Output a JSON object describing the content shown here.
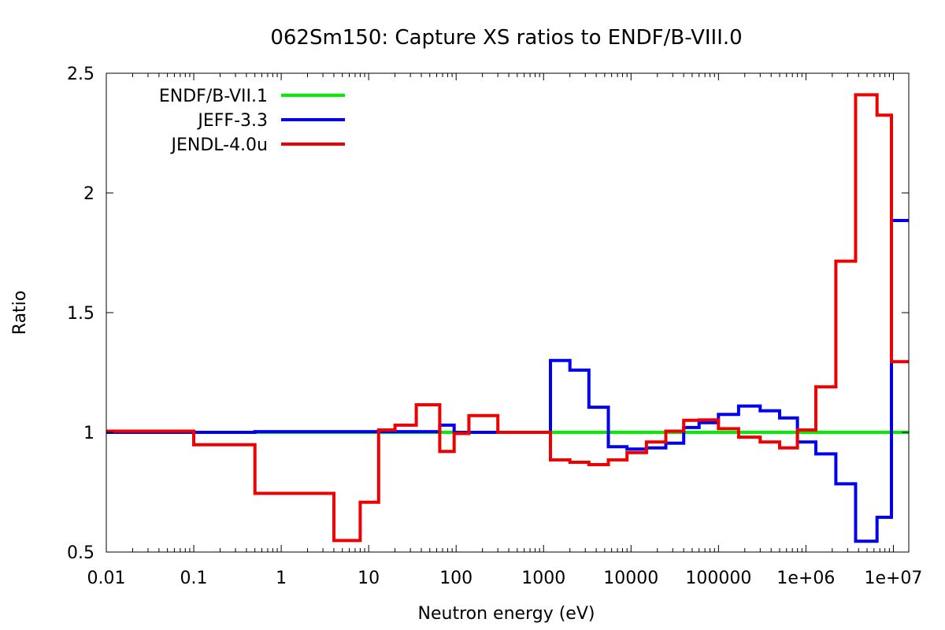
{
  "chart_data": {
    "type": "line",
    "title": "062Sm150: Capture XS ratios to ENDF/B-VIII.0",
    "xlabel": "Neutron energy (eV)",
    "ylabel": "Ratio",
    "x_scale": "log",
    "xlim": [
      0.01,
      15000000
    ],
    "ylim": [
      0.5,
      2.5
    ],
    "x_ticks": [
      0.01,
      0.1,
      1,
      10,
      100,
      1000,
      10000,
      100000,
      1000000,
      10000000
    ],
    "x_tick_labels": [
      "0.01",
      "0.1",
      "1",
      "10",
      "100",
      "1000",
      "10000",
      "100000",
      "1e+06",
      "1e+07"
    ],
    "y_ticks": [
      0.5,
      1,
      1.5,
      2,
      2.5
    ],
    "y_tick_labels": [
      "0.5",
      "1",
      "1.5",
      "2",
      "2.5"
    ],
    "legend_position": "top-left",
    "grid": false,
    "series": [
      {
        "name": "ENDF/B-VII.1",
        "color": "#00ee00",
        "step": true,
        "x": [
          0.01,
          15000000
        ],
        "y": [
          1.0,
          1.0
        ]
      },
      {
        "name": "JEFF-3.3",
        "color": "#0000ee",
        "step": true,
        "x": [
          0.01,
          0.5,
          4,
          65,
          95,
          1200,
          2000,
          3300,
          5500,
          9000,
          15000,
          25000,
          40000,
          60000,
          100000,
          170000,
          300000,
          500000,
          800000,
          1300000,
          2200000,
          3700000,
          6500000,
          9500000,
          15000000
        ],
        "y": [
          1.0,
          1.003,
          1.003,
          1.03,
          1.0,
          1.3,
          1.26,
          1.105,
          0.94,
          0.93,
          0.935,
          0.955,
          1.02,
          1.04,
          1.075,
          1.11,
          1.09,
          1.06,
          0.96,
          0.91,
          0.785,
          0.545,
          0.645,
          1.885,
          1.885
        ]
      },
      {
        "name": "JENDL-4.0u",
        "color": "#ee0000",
        "step": true,
        "x": [
          0.01,
          0.1,
          0.5,
          4,
          8,
          13,
          20,
          35,
          65,
          95,
          140,
          300,
          1200,
          2000,
          3300,
          5500,
          9000,
          15000,
          25000,
          40000,
          60000,
          100000,
          170000,
          300000,
          500000,
          800000,
          1300000,
          2200000,
          3700000,
          6500000,
          9500000,
          15000000
        ],
        "y": [
          1.005,
          0.948,
          0.745,
          0.548,
          0.708,
          1.01,
          1.03,
          1.115,
          0.92,
          0.995,
          1.07,
          1.0,
          0.885,
          0.875,
          0.865,
          0.885,
          0.915,
          0.96,
          1.005,
          1.05,
          1.052,
          1.015,
          0.98,
          0.96,
          0.935,
          1.01,
          1.19,
          1.715,
          2.41,
          2.325,
          1.295,
          1.295
        ]
      }
    ]
  }
}
